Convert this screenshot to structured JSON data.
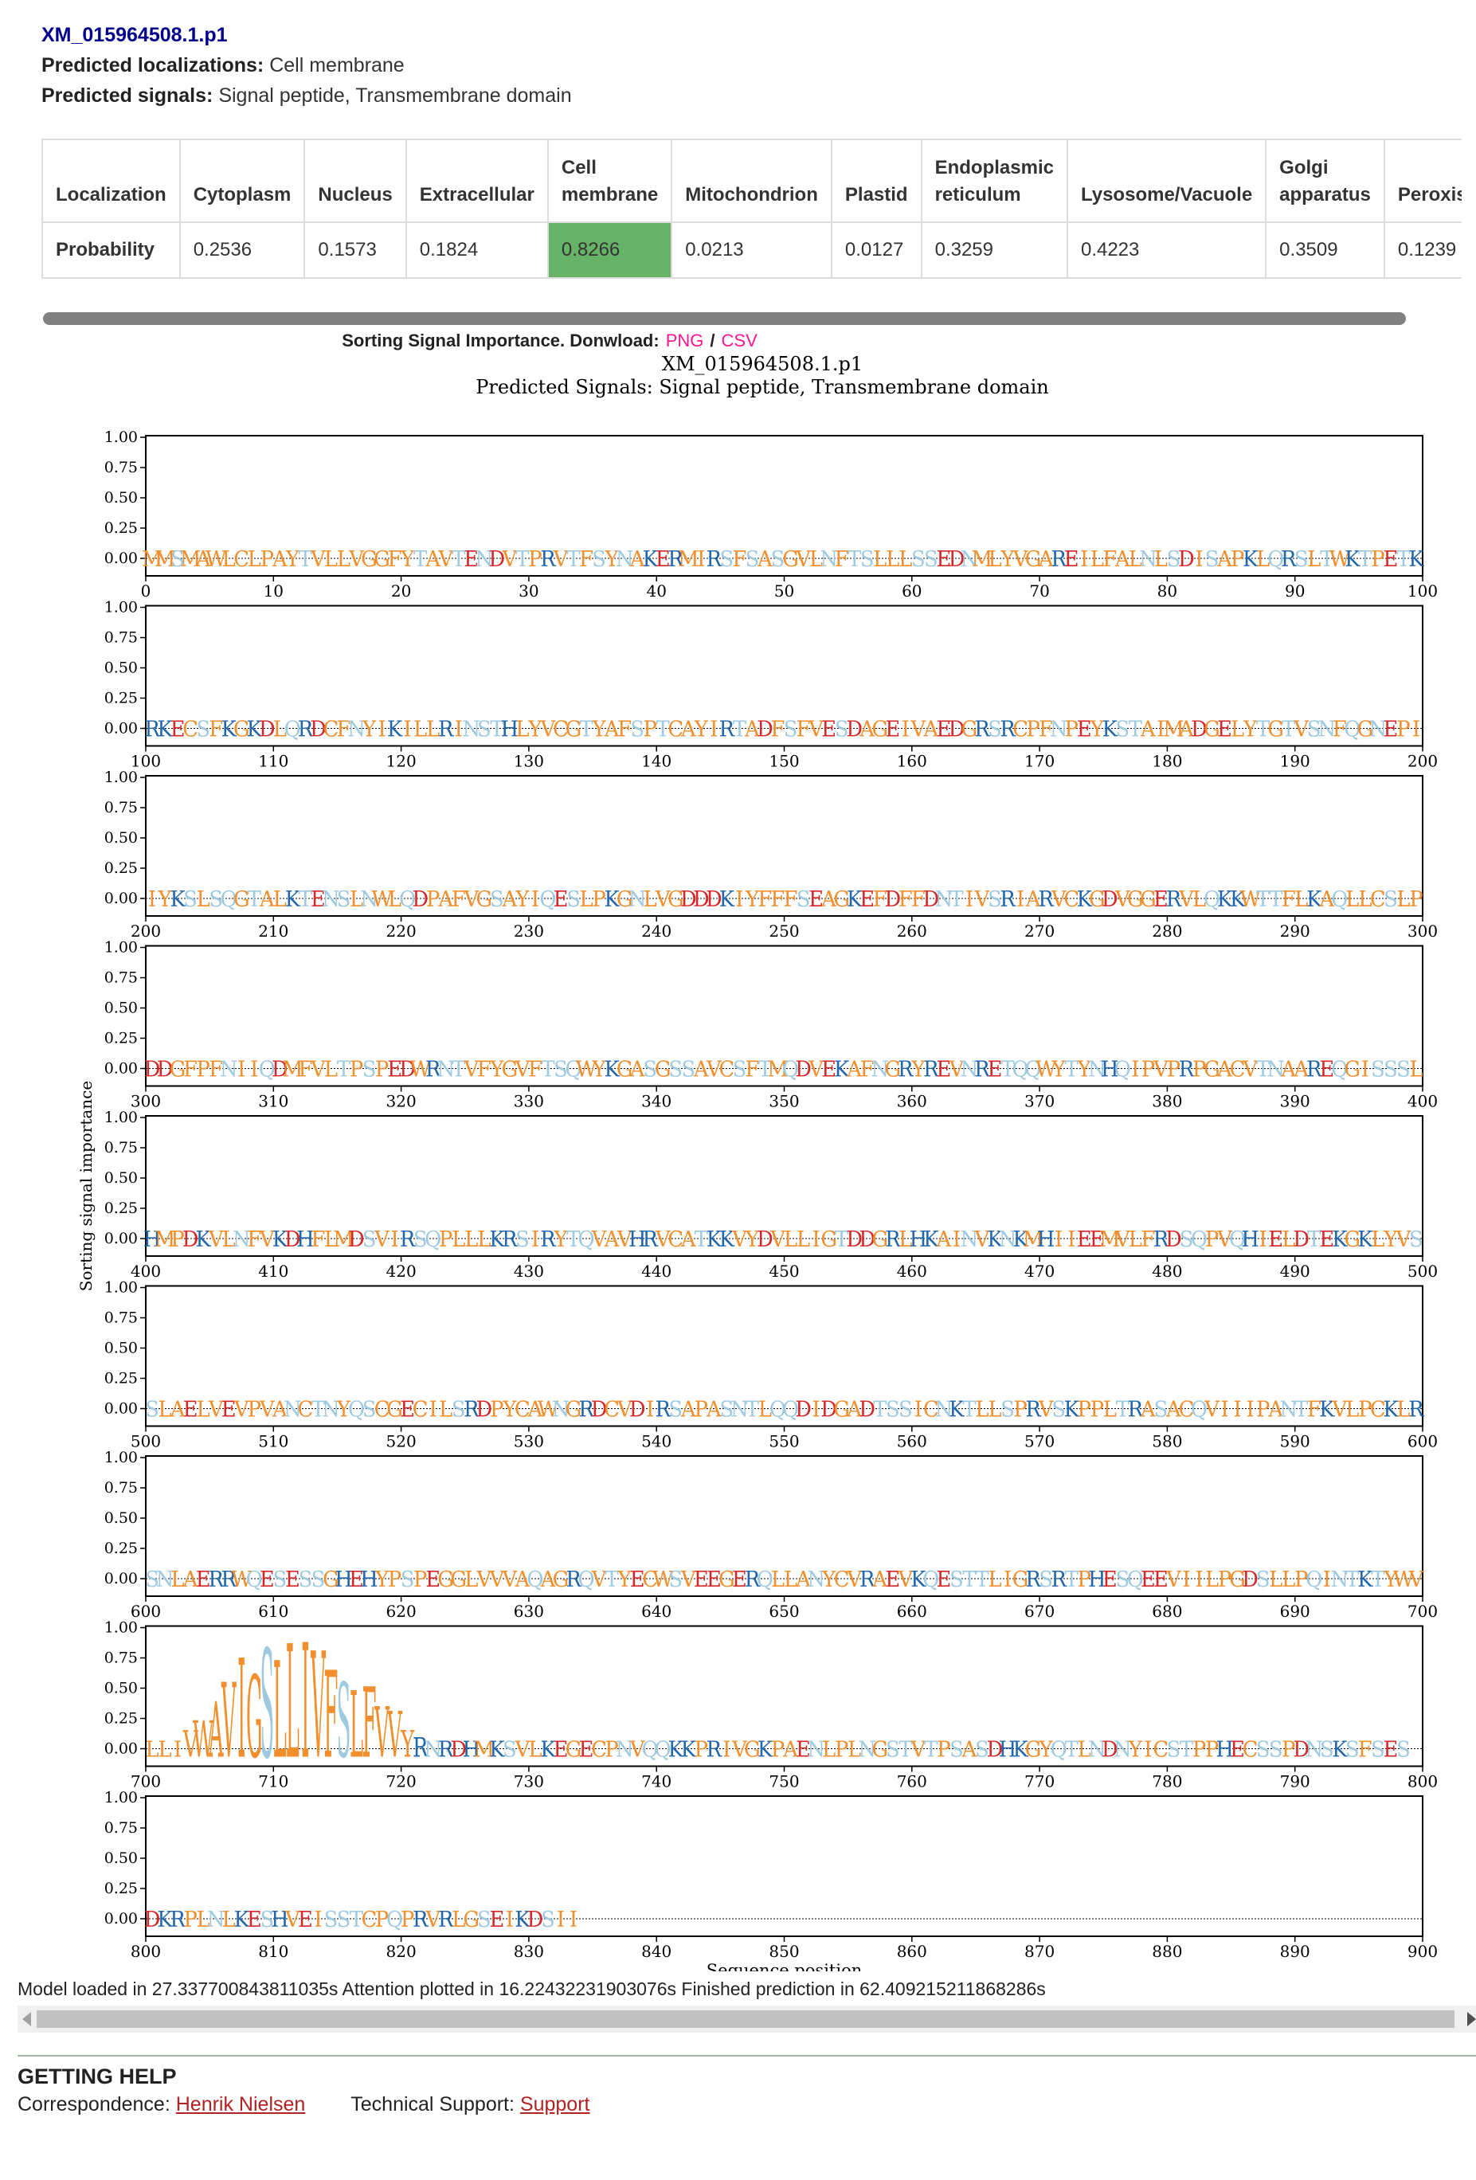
{
  "header": {
    "protein_id": "XM_015964508.1.p1",
    "localizations_label": "Predicted localizations:",
    "localizations_value": "Cell membrane",
    "signals_label": "Predicted signals:",
    "signals_value": "Signal peptide, Transmembrane domain"
  },
  "table": {
    "row_header_label": "Localization",
    "row_value_label": "Probability",
    "columns": [
      {
        "name": "Cytoplasm",
        "value": "0.2536"
      },
      {
        "name": "Nucleus",
        "value": "0.1573"
      },
      {
        "name": "Extracellular",
        "value": "0.1824"
      },
      {
        "name": "Cell membrane",
        "value": "0.8266",
        "highlight": true
      },
      {
        "name": "Mitochondrion",
        "value": "0.0213"
      },
      {
        "name": "Plastid",
        "value": "0.0127"
      },
      {
        "name": "Endoplasmic reticulum",
        "value": "0.3259"
      },
      {
        "name": "Lysosome/Vacuole",
        "value": "0.4223"
      },
      {
        "name": "Golgi apparatus",
        "value": "0.3509"
      },
      {
        "name": "Peroxisome",
        "value": "0.1239"
      }
    ],
    "highlight_color": "#66b266"
  },
  "figure": {
    "heading_prefix": "Sorting Signal Importance. Donwload:",
    "png_link": "PNG",
    "separator": "/",
    "csv_link": "CSV",
    "title_line1": "XM_015964508.1.p1",
    "title_line2": "Predicted Signals: Signal peptide, Transmembrane domain",
    "link_color": "#ff1493"
  },
  "chart_data": {
    "type": "sequence-logo",
    "ylabel": "Sorting signal importance",
    "xlabel": "Sequence position",
    "ylim": [
      0,
      1
    ],
    "yticks": [
      "0.00",
      "0.25",
      "0.50",
      "0.75",
      "1.00"
    ],
    "grid": false,
    "residues_per_row": 100,
    "rows": [
      {
        "start": 0,
        "end": 100,
        "seq": "MMSMAWLCLPAYTVLLVGGFYTAVTENDVTPRVTFSYNAKERMIRSFSASGVLNFTSLLLSSEDNMLYVGAREILFALNLSDISAPKLQRSLTWKTPETK"
      },
      {
        "start": 100,
        "end": 200,
        "seq": "RKECSFKGKDLQRDCFNYIKILLRINSTHLYVCGTYAFSPTCAYIRTADFSFVESDAGEIVAEDGRSRCPFNPEYKSTAIMADGELYTGTVSNFQGNEPI"
      },
      {
        "start": 200,
        "end": 300,
        "seq": "IYKSLSQGTALKTENSLNWLQDPAFVGSAYIQESLPKGNLVGDDDKIYFFFSEAGKEFDFFDNTIVSRIARVCKGDVGGERVLQKKWTTFLKAQLLCSLP"
      },
      {
        "start": 300,
        "end": 400,
        "seq": "DDGFPFNIIQDMFVLTPSPEDWRNTVFYGVFTSQWYKGASGSSAVCSFTMQDVEKAFNGRYREVNRETQQWYTYNHQIPVPRPGACVTNAAREQGISSSL"
      },
      {
        "start": 400,
        "end": 500,
        "seq": "HMPDKVLNFVKDHFLMDSVIRSQPLLLKRSIRYTQVAVHRVCATKKVYDVLLIGTDDGRLHKAINVKNKMHIIEEMVLFRDSQPVQHIELDTEKGKLYVS"
      },
      {
        "start": 500,
        "end": 600,
        "seq": "SLAELVEVPVANCTNYQSCGECILSRDPYCAWNGRDCVDIRSAPASNTLQQDIDGADTSSICNKTLLSPRVSKPPLTRASACQVIIIPANTFKVLPCKLR"
      },
      {
        "start": 600,
        "end": 700,
        "seq": "SNLAERRWQESESSGHEHYPSPEGGLVVVAQAGRQVTYECWSVEEGERQLLANYCVRAEVKQESTTLIGRSRTPHESQEEVIILPGDSLLPQINTKTYWV"
      },
      {
        "start": 700,
        "end": 800,
        "seq": "LLIVWAVIGSLLIVFSLFVVYRNRDHMKSVLKEGECPNVQQKKPRIVGKPAENLPLNGSTVTPSASDHKGYQTLNDNYICSTPPHECSSPDNSKSFSES"
      },
      {
        "start": 800,
        "end": 900,
        "seq": "DKRPLNLKESHVEISSTCPQPRVRLGSEIKDSII"
      }
    ],
    "importance_peaks": [
      {
        "pos": 700,
        "value": 0.12
      },
      {
        "pos": 701,
        "value": 0.07
      },
      {
        "pos": 702,
        "value": 0.1
      },
      {
        "pos": 703,
        "value": 0.22
      },
      {
        "pos": 704,
        "value": 0.3
      },
      {
        "pos": 705,
        "value": 0.46
      },
      {
        "pos": 706,
        "value": 0.62
      },
      {
        "pos": 707,
        "value": 0.82
      },
      {
        "pos": 708,
        "value": 0.68
      },
      {
        "pos": 709,
        "value": 0.9
      },
      {
        "pos": 710,
        "value": 0.8
      },
      {
        "pos": 711,
        "value": 0.94
      },
      {
        "pos": 712,
        "value": 0.95
      },
      {
        "pos": 713,
        "value": 0.88
      },
      {
        "pos": 714,
        "value": 0.72
      },
      {
        "pos": 715,
        "value": 0.62
      },
      {
        "pos": 716,
        "value": 0.55
      },
      {
        "pos": 717,
        "value": 0.58
      },
      {
        "pos": 718,
        "value": 0.42
      },
      {
        "pos": 719,
        "value": 0.38
      },
      {
        "pos": 720,
        "value": 0.22
      },
      {
        "pos": 721,
        "value": 0.16
      },
      {
        "pos": 722,
        "value": 0.08
      },
      {
        "pos": 723,
        "value": 0.06
      },
      {
        "pos": 7,
        "value": 0.06
      },
      {
        "pos": 12,
        "value": 0.05
      },
      {
        "pos": 22,
        "value": 0.05
      },
      {
        "pos": 24,
        "value": 0.04
      },
      {
        "pos": 699,
        "value": 0.05
      },
      {
        "pos": 832,
        "value": 0.05
      },
      {
        "pos": 833,
        "value": 0.08
      }
    ],
    "colors": {
      "hydrophobic": "#f28e2b",
      "polar": "#9ecae1",
      "positive": "#2166ac",
      "special": "#d62728"
    }
  },
  "footer": {
    "timing": "Model loaded in 27.337700843811035s Attention plotted in 16.22432231903076s Finished prediction in 62.409215211868286s",
    "help_title": "GETTING HELP",
    "correspondence_label": "Correspondence:",
    "correspondence_name": "Henrik Nielsen",
    "tech_label": "Technical Support:",
    "tech_link": "Support"
  }
}
